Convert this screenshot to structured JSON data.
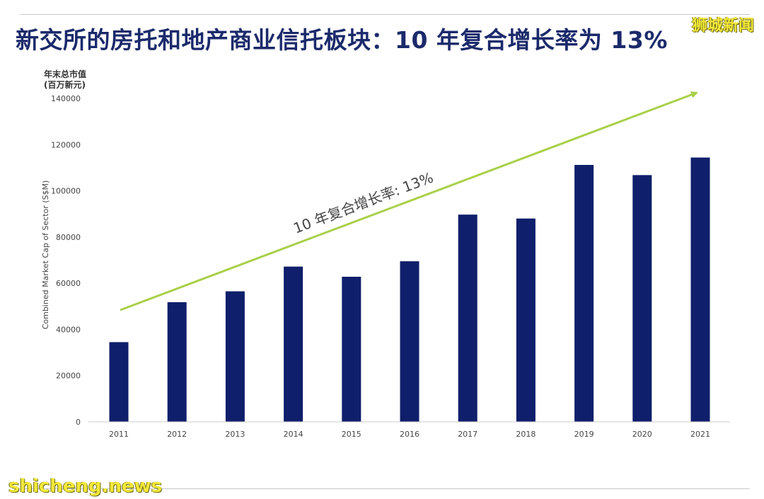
{
  "title": "新交所的房托和地产商业信托板块：10 年复合增长率为 13%",
  "watermarks": {
    "top_right": "狮城新闻",
    "bottom_left": "shicheng.news"
  },
  "y_unit_label_line1": "年末总市值",
  "y_unit_label_line2": "(百万新元)",
  "annotation": "10 年复合增长率: 13%",
  "colors": {
    "bar": "#0f1f6b",
    "arrow": "#a9d049",
    "title": "#1b2a6b"
  },
  "chart_data": {
    "type": "bar",
    "title": "新交所的房托和地产商业信托板块：10 年复合增长率为 13%",
    "ylabel": "Combined Market Cap of Sector (S$M)",
    "xlabel": "",
    "categories": [
      "2011",
      "2012",
      "2013",
      "2014",
      "2015",
      "2016",
      "2017",
      "2018",
      "2019",
      "2020",
      "2021"
    ],
    "values": [
      34500,
      51800,
      56500,
      67200,
      62800,
      69500,
      89700,
      88000,
      111200,
      106800,
      114400
    ],
    "ylim": [
      0,
      140000
    ],
    "yticks": [
      0,
      20000,
      40000,
      60000,
      80000,
      100000,
      120000,
      140000
    ],
    "grid": false,
    "legend": "none",
    "annotations": [
      "10 年复合增长率: 13%"
    ]
  }
}
